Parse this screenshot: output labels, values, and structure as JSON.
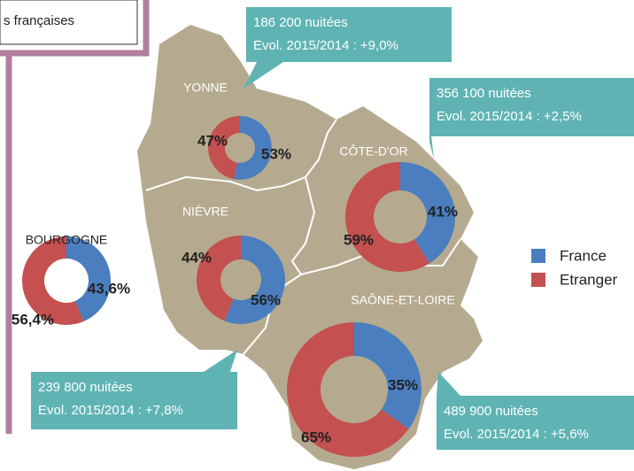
{
  "header_fragment": "s françaises",
  "legend": {
    "names": [
      "France",
      "Etranger"
    ],
    "colors": [
      "#4a7ebf",
      "#c4504f"
    ]
  },
  "summary": {
    "label": "BOURGOGNE",
    "values": [
      43.6,
      56.4
    ],
    "value_labels": [
      "43,6%",
      "56,4%"
    ]
  },
  "regions": [
    {
      "label": "YONNE",
      "values": [
        53,
        47
      ],
      "value_labels": [
        "53%",
        "47%"
      ],
      "nuitees": "186 200 nuitées",
      "evol": "Evol. 2015/2014 : +9,0%"
    },
    {
      "label": "CÔTE-D'OR",
      "values": [
        41,
        59
      ],
      "value_labels": [
        "41%",
        "59%"
      ],
      "nuitees": "356 100 nuitées",
      "evol": "Evol. 2015/2014 : +2,5%"
    },
    {
      "label": "NIÈVRE",
      "values": [
        56,
        44
      ],
      "value_labels": [
        "56%",
        "44%"
      ],
      "nuitees": "239 800 nuitées",
      "evol": "Evol. 2015/2014 : +7,8%"
    },
    {
      "label": "SAÔNE-ET-LOIRE",
      "values": [
        35,
        65
      ],
      "value_labels": [
        "35%",
        "65%"
      ],
      "nuitees": "489 900 nuitées",
      "evol": "Evol. 2015/2014 : +5,6%"
    }
  ]
}
